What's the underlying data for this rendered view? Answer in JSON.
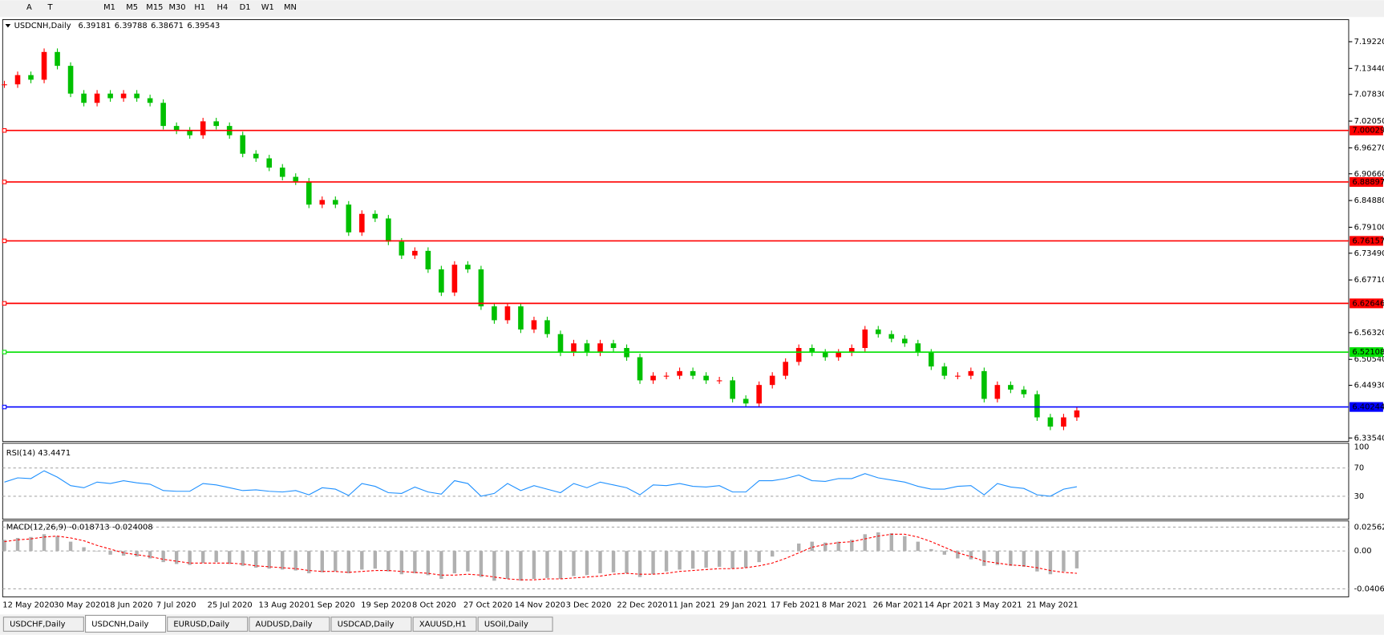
{
  "toolbar": {
    "tools": [
      "A",
      "T"
    ],
    "timeframes": [
      "M1",
      "M5",
      "M15",
      "M30",
      "H1",
      "H4",
      "D1",
      "W1",
      "MN"
    ]
  },
  "chart": {
    "header": "USDCNH,Daily",
    "quote": [
      "6.39181",
      "6.39788",
      "6.38671",
      "6.39543"
    ],
    "price_axis": {
      "ylim": [
        6.3278,
        7.2399
      ],
      "ticks": [
        {
          "value": 7.1922,
          "label": "7.19220"
        },
        {
          "value": 7.1344,
          "label": "7.13440"
        },
        {
          "value": 7.0783,
          "label": "7.07830"
        },
        {
          "value": 7.0205,
          "label": "7.02050"
        },
        {
          "value": 6.9627,
          "label": "6.96270"
        },
        {
          "value": 6.9066,
          "label": "6.90660"
        },
        {
          "value": 6.8488,
          "label": "6.84880"
        },
        {
          "value": 6.791,
          "label": "6.79100"
        },
        {
          "value": 6.7349,
          "label": "6.73490"
        },
        {
          "value": 6.6771,
          "label": "6.67710"
        },
        {
          "value": 6.5632,
          "label": "6.56320"
        },
        {
          "value": 6.5054,
          "label": "6.50540"
        },
        {
          "value": 6.4493,
          "label": "6.44930"
        },
        {
          "value": 6.3354,
          "label": "6.33540"
        }
      ]
    },
    "levels": [
      {
        "value": 7.00029,
        "label": "7.00029",
        "color": "#ff0000"
      },
      {
        "value": 6.88897,
        "label": "6.88897",
        "color": "#ff0000"
      },
      {
        "value": 6.76157,
        "label": "6.76157",
        "color": "#ff0000"
      },
      {
        "value": 6.62646,
        "label": "6.62646",
        "color": "#ff0000"
      },
      {
        "value": 6.52108,
        "label": "6.52108",
        "color": "#00e000"
      },
      {
        "value": 6.40244,
        "label": "6.40244",
        "color": "#0000ff"
      }
    ],
    "closes": [
      7.1,
      7.12,
      7.11,
      7.17,
      7.14,
      7.08,
      7.06,
      7.08,
      7.07,
      7.08,
      7.07,
      7.06,
      7.01,
      7.0,
      6.99,
      7.02,
      7.01,
      6.99,
      6.95,
      6.94,
      6.92,
      6.9,
      6.89,
      6.84,
      6.85,
      6.84,
      6.78,
      6.82,
      6.81,
      6.76,
      6.73,
      6.74,
      6.7,
      6.65,
      6.71,
      6.7,
      6.62,
      6.59,
      6.62,
      6.57,
      6.59,
      6.56,
      6.52,
      6.54,
      6.52,
      6.54,
      6.53,
      6.51,
      6.46,
      6.47,
      6.47,
      6.48,
      6.47,
      6.46,
      6.46,
      6.42,
      6.41,
      6.45,
      6.47,
      6.5,
      6.53,
      6.52,
      6.51,
      6.52,
      6.53,
      6.57,
      6.56,
      6.55,
      6.54,
      6.52,
      6.49,
      6.47,
      6.47,
      6.48,
      6.42,
      6.45,
      6.44,
      6.43,
      6.38,
      6.36,
      6.38,
      6.395
    ],
    "up_color": "#ff0000",
    "down_color": "#00c000",
    "dates": [
      "12 May 2020",
      "30 May 2020",
      "18 Jun 2020",
      "7 Jul 2020",
      "25 Jul 2020",
      "13 Aug 2020",
      "1 Sep 2020",
      "19 Sep 2020",
      "8 Oct 2020",
      "27 Oct 2020",
      "14 Nov 2020",
      "3 Dec 2020",
      "22 Dec 2020",
      "11 Jan 2021",
      "29 Jan 2021",
      "17 Feb 2021",
      "8 Mar 2021",
      "26 Mar 2021",
      "14 Apr 2021",
      "3 May 2021",
      "21 May 2021"
    ]
  },
  "rsi": {
    "label": "RSI(14) 43.4471",
    "ylim": [
      0,
      100
    ],
    "ticks": [
      100,
      70,
      30
    ],
    "color": "#1e90ff",
    "values": [
      50,
      56,
      55,
      66,
      57,
      45,
      42,
      50,
      48,
      52,
      49,
      47,
      38,
      37,
      37,
      48,
      46,
      42,
      38,
      39,
      37,
      36,
      38,
      32,
      42,
      40,
      31,
      48,
      44,
      35,
      34,
      43,
      36,
      33,
      52,
      48,
      30,
      34,
      48,
      38,
      45,
      40,
      35,
      48,
      42,
      50,
      46,
      42,
      32,
      46,
      45,
      48,
      44,
      43,
      45,
      36,
      36,
      52,
      52,
      55,
      60,
      52,
      51,
      55,
      55,
      62,
      56,
      53,
      50,
      44,
      40,
      40,
      44,
      45,
      32,
      48,
      43,
      41,
      32,
      30,
      40,
      43.4471
    ]
  },
  "macd": {
    "label": "MACD(12,26,9) -0.018713 -0.024008",
    "ylim": [
      -0.0493,
      0.0323
    ],
    "ticks": [
      0.025623,
      {
        "value": 0,
        "label": "0.00"
      },
      -0.040687
    ],
    "main_color": "#b0b0b0",
    "signal_color": "#ff0000",
    "main": [
      0.012,
      0.014,
      0.015,
      0.018,
      0.016,
      0.01,
      0.004,
      0.0,
      -0.004,
      -0.005,
      -0.006,
      -0.008,
      -0.012,
      -0.014,
      -0.015,
      -0.013,
      -0.012,
      -0.014,
      -0.016,
      -0.018,
      -0.019,
      -0.02,
      -0.021,
      -0.024,
      -0.023,
      -0.022,
      -0.024,
      -0.02,
      -0.019,
      -0.022,
      -0.025,
      -0.024,
      -0.026,
      -0.03,
      -0.024,
      -0.022,
      -0.028,
      -0.032,
      -0.03,
      -0.032,
      -0.03,
      -0.029,
      -0.03,
      -0.027,
      -0.026,
      -0.024,
      -0.023,
      -0.024,
      -0.028,
      -0.025,
      -0.022,
      -0.02,
      -0.019,
      -0.018,
      -0.017,
      -0.019,
      -0.018,
      -0.012,
      -0.006,
      0.0,
      0.008,
      0.01,
      0.009,
      0.01,
      0.012,
      0.018,
      0.02,
      0.019,
      0.016,
      0.01,
      0.002,
      -0.004,
      -0.008,
      -0.009,
      -0.016,
      -0.015,
      -0.016,
      -0.017,
      -0.022,
      -0.025,
      -0.022,
      -0.018713
    ],
    "signal": [
      0.01,
      0.012,
      0.013,
      0.015,
      0.016,
      0.014,
      0.011,
      0.006,
      0.002,
      -0.002,
      -0.004,
      -0.006,
      -0.009,
      -0.011,
      -0.013,
      -0.013,
      -0.013,
      -0.013,
      -0.014,
      -0.016,
      -0.017,
      -0.018,
      -0.019,
      -0.021,
      -0.022,
      -0.022,
      -0.023,
      -0.022,
      -0.021,
      -0.021,
      -0.022,
      -0.023,
      -0.024,
      -0.026,
      -0.026,
      -0.025,
      -0.026,
      -0.028,
      -0.03,
      -0.031,
      -0.031,
      -0.03,
      -0.03,
      -0.029,
      -0.028,
      -0.027,
      -0.025,
      -0.024,
      -0.025,
      -0.025,
      -0.024,
      -0.022,
      -0.021,
      -0.02,
      -0.019,
      -0.019,
      -0.018,
      -0.016,
      -0.013,
      -0.008,
      -0.002,
      0.004,
      0.007,
      0.009,
      0.01,
      0.013,
      0.016,
      0.018,
      0.018,
      0.015,
      0.01,
      0.004,
      -0.002,
      -0.006,
      -0.011,
      -0.013,
      -0.015,
      -0.016,
      -0.018,
      -0.021,
      -0.023,
      -0.024008
    ]
  },
  "tabs": {
    "items": [
      "USDCHF,Daily",
      "USDCNH,Daily",
      "EURUSD,Daily",
      "AUDUSD,Daily",
      "USDCAD,Daily",
      "XAUUSD,H1",
      "USOil,Daily"
    ],
    "active": 1
  }
}
